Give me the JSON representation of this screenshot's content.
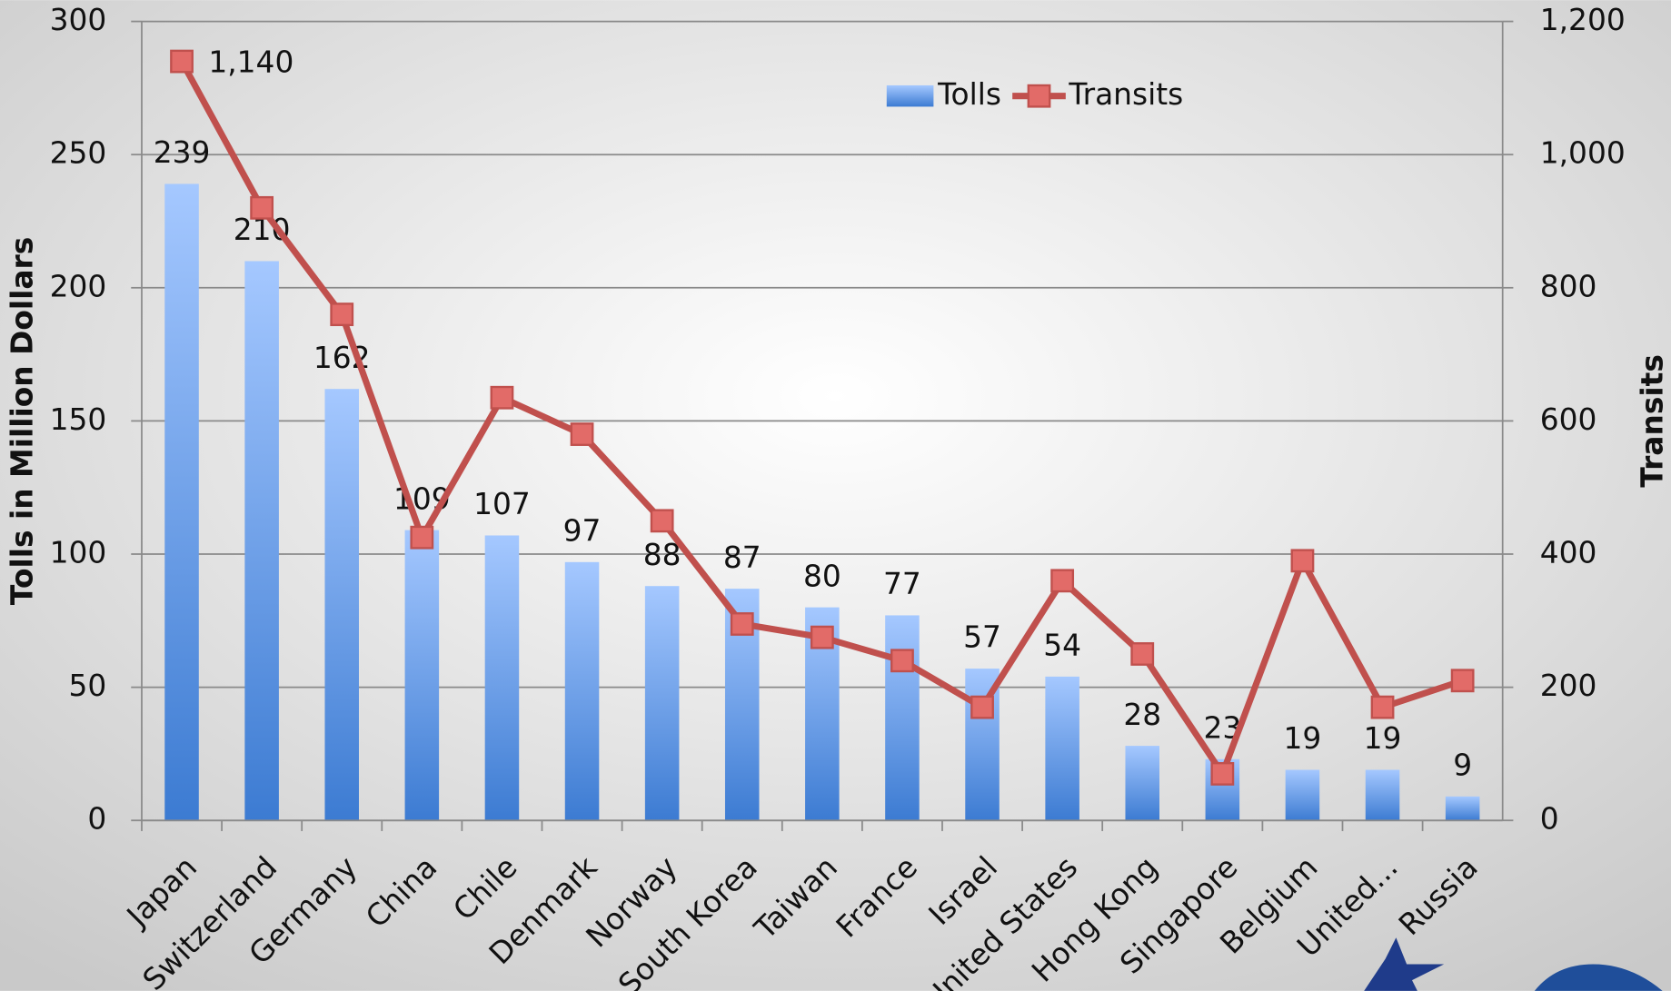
{
  "chart_data": {
    "type": "bar_line",
    "categories": [
      "Japan",
      "Switzerland",
      "Germany",
      "China",
      "Chile",
      "Denmark",
      "Norway",
      "South Korea",
      "Taiwan",
      "France",
      "Israel",
      "United States",
      "Hong Kong",
      "Singapore",
      "Belgium",
      "United...",
      "Russia"
    ],
    "series": [
      {
        "name": "Tolls",
        "color": "#4a88dd",
        "values": [
          239,
          210,
          162,
          109,
          107,
          97,
          88,
          87,
          80,
          77,
          57,
          54,
          28,
          23,
          19,
          19,
          9
        ]
      },
      {
        "name": "Transits",
        "color": "#c0504d",
        "axis": "y2",
        "values": [
          1140,
          920,
          760,
          425,
          635,
          580,
          450,
          295,
          275,
          240,
          170,
          360,
          250,
          70,
          390,
          170,
          210
        ],
        "value_labels": [
          "1,140",
          null,
          null,
          null,
          null,
          null,
          null,
          null,
          null,
          null,
          null,
          null,
          null,
          null,
          null,
          null,
          null
        ]
      }
    ],
    "ylabel": "Tolls in Million Dollars",
    "y2label": "Transits",
    "ylim": [
      0,
      300
    ],
    "yticks": [
      0,
      50,
      100,
      150,
      200,
      250,
      300
    ],
    "y2lim": [
      0,
      1200
    ],
    "y2ticks": [
      0,
      200,
      400,
      600,
      800,
      {
        "value": 1000,
        "label": "1,000"
      },
      {
        "value": 1200,
        "label": "1,200"
      }
    ],
    "grid": true,
    "legend": "top"
  }
}
